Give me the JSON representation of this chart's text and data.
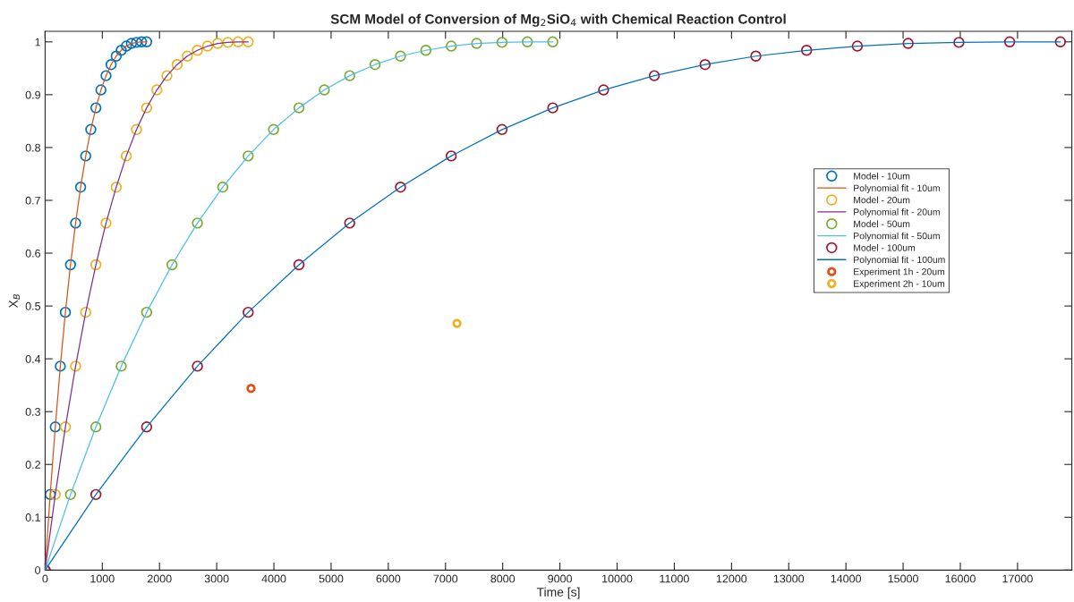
{
  "chart_data": {
    "type": "line",
    "title": "SCM Model of Conversion of Mg$_{2}$SiO$_{4}$ with Chemical Reaction Control",
    "xlabel": "Time [s]",
    "ylabel": "X$_{B}$",
    "xlim": [
      0,
      17950
    ],
    "xticks": [
      0,
      1000,
      2000,
      3000,
      4000,
      5000,
      6000,
      7000,
      8000,
      9000,
      10000,
      11000,
      12000,
      13000,
      14000,
      15000,
      16000,
      17000
    ],
    "ylim": [
      0,
      1.02
    ],
    "yticks": [
      0,
      0.1,
      0.2,
      0.3,
      0.4,
      0.5,
      0.6,
      0.7,
      0.8,
      0.9,
      1
    ],
    "grid": false,
    "legend": "right",
    "series": [
      {
        "name": "Model - 10um",
        "type": "scatter",
        "marker": "circle",
        "color": "#0072bd",
        "x": [
          0,
          89,
          178,
          266,
          355,
          444,
          533,
          621,
          710,
          799,
          888,
          976,
          1065,
          1154,
          1243,
          1331,
          1420,
          1509,
          1598,
          1686,
          1775
        ],
        "values": [
          0,
          0.143,
          0.271,
          0.386,
          0.488,
          0.578,
          0.657,
          0.725,
          0.784,
          0.834,
          0.875,
          0.909,
          0.936,
          0.957,
          0.973,
          0.984,
          0.992,
          0.997,
          0.999,
          1.0,
          1
        ]
      },
      {
        "name": "Polynomial fit - 10um",
        "line_style": "solid",
        "color": "#d95319",
        "x": [
          0,
          89,
          178,
          266,
          355,
          444,
          533,
          621,
          710,
          799,
          888,
          976,
          1065,
          1154,
          1243,
          1331,
          1420,
          1509,
          1598,
          1686,
          1775
        ],
        "values": [
          0,
          0.143,
          0.271,
          0.386,
          0.488,
          0.578,
          0.657,
          0.725,
          0.784,
          0.834,
          0.875,
          0.909,
          0.936,
          0.957,
          0.973,
          0.984,
          0.992,
          0.997,
          0.999,
          1.0,
          1
        ]
      },
      {
        "name": "Model - 20um",
        "type": "scatter",
        "marker": "circle",
        "color": "#edb120",
        "x": [
          0,
          178,
          355,
          533,
          710,
          888,
          1065,
          1243,
          1420,
          1598,
          1775,
          1953,
          2130,
          2308,
          2485,
          2663,
          2840,
          3018,
          3195,
          3373,
          3550
        ],
        "values": [
          0,
          0.143,
          0.271,
          0.386,
          0.488,
          0.578,
          0.657,
          0.725,
          0.784,
          0.834,
          0.875,
          0.909,
          0.936,
          0.957,
          0.973,
          0.984,
          0.992,
          0.997,
          0.999,
          1.0,
          1
        ]
      },
      {
        "name": "Polynomial fit - 20um",
        "line_style": "solid",
        "color": "#7e2f8e",
        "x": [
          0,
          178,
          355,
          533,
          710,
          888,
          1065,
          1243,
          1420,
          1598,
          1775,
          1953,
          2130,
          2308,
          2485,
          2663,
          2840,
          3018,
          3195,
          3373,
          3550
        ],
        "values": [
          0,
          0.143,
          0.271,
          0.386,
          0.488,
          0.578,
          0.657,
          0.725,
          0.784,
          0.834,
          0.875,
          0.909,
          0.936,
          0.957,
          0.973,
          0.984,
          0.992,
          0.997,
          0.999,
          1.0,
          1
        ]
      },
      {
        "name": "Model - 50um",
        "type": "scatter",
        "marker": "circle",
        "color": "#77ac30",
        "x": [
          0,
          444,
          888,
          1331,
          1775,
          2219,
          2663,
          3106,
          3550,
          3994,
          4438,
          4881,
          5325,
          5769,
          6213,
          6656,
          7100,
          7544,
          7988,
          8431,
          8875
        ],
        "values": [
          0,
          0.143,
          0.271,
          0.386,
          0.488,
          0.578,
          0.657,
          0.725,
          0.784,
          0.834,
          0.875,
          0.909,
          0.936,
          0.957,
          0.973,
          0.984,
          0.992,
          0.997,
          0.999,
          1.0,
          1
        ]
      },
      {
        "name": "Polynomial fit - 50um",
        "line_style": "solid",
        "color": "#4dbeee",
        "x": [
          0,
          444,
          888,
          1331,
          1775,
          2219,
          2663,
          3106,
          3550,
          3994,
          4438,
          4881,
          5325,
          5769,
          6213,
          6656,
          7100,
          7544,
          7988,
          8431,
          8875
        ],
        "values": [
          0,
          0.143,
          0.271,
          0.386,
          0.488,
          0.578,
          0.657,
          0.725,
          0.784,
          0.834,
          0.875,
          0.909,
          0.936,
          0.957,
          0.973,
          0.984,
          0.992,
          0.997,
          0.999,
          1.0,
          1
        ]
      },
      {
        "name": "Model - 100um",
        "type": "scatter",
        "marker": "circle",
        "color": "#a2142f",
        "x": [
          0,
          888,
          1775,
          2663,
          3550,
          4438,
          5325,
          6213,
          7100,
          7988,
          8875,
          9763,
          10650,
          11538,
          12425,
          13313,
          14200,
          15088,
          15975,
          16863,
          17750
        ],
        "values": [
          0,
          0.143,
          0.271,
          0.386,
          0.488,
          0.578,
          0.657,
          0.725,
          0.784,
          0.834,
          0.875,
          0.909,
          0.936,
          0.957,
          0.973,
          0.984,
          0.992,
          0.997,
          0.999,
          1.0,
          1
        ]
      },
      {
        "name": "Polynomial fit - 100um",
        "line_style": "solid",
        "color": "#0072bd",
        "x": [
          0,
          888,
          1775,
          2663,
          3550,
          4438,
          5325,
          6213,
          7100,
          7988,
          8875,
          9763,
          10650,
          11538,
          12425,
          13313,
          14200,
          15088,
          15975,
          16863,
          17750
        ],
        "values": [
          0,
          0.143,
          0.271,
          0.386,
          0.488,
          0.578,
          0.657,
          0.725,
          0.784,
          0.834,
          0.875,
          0.909,
          0.936,
          0.957,
          0.973,
          0.984,
          0.992,
          0.997,
          0.999,
          1.0,
          1
        ]
      },
      {
        "name": "Experiment 1h - 20um",
        "type": "scatter",
        "marker": "circle",
        "color": "#d95319",
        "x": [
          3600
        ],
        "values": [
          0.344
        ]
      },
      {
        "name": "Experiment 2h - 10um",
        "type": "scatter",
        "marker": "circle",
        "color": "#edb120",
        "x": [
          7200
        ],
        "values": [
          0.467
        ]
      }
    ]
  }
}
